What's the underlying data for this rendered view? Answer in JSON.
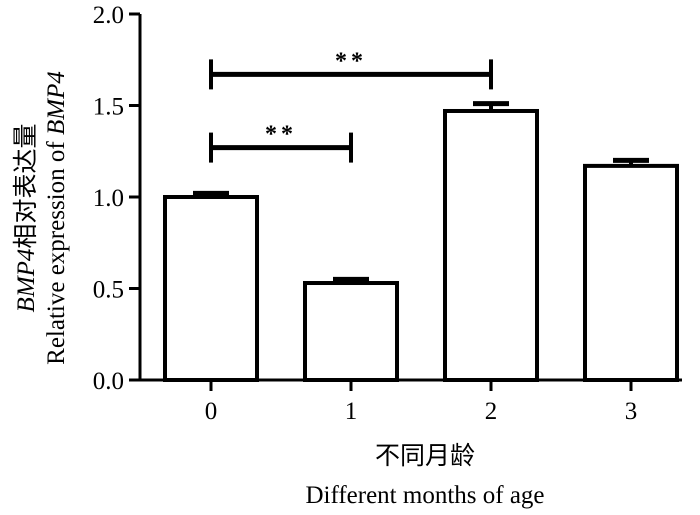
{
  "chart_data": {
    "type": "bar",
    "categories": [
      "0",
      "1",
      "2",
      "3"
    ],
    "values": [
      1.0,
      0.53,
      1.47,
      1.17
    ],
    "errors": [
      0.02,
      0.02,
      0.04,
      0.03
    ],
    "ylim": [
      0,
      2.0
    ],
    "yticks": [
      "0.0",
      "0.5",
      "1.0",
      "1.5",
      "2.0"
    ],
    "xlabel_cn": "不同月龄",
    "xlabel_en": "Different months of age",
    "ylabel_cn_gene": "BMP4",
    "ylabel_cn_rest": "相对表达量",
    "ylabel_en_prefix": "Relative expression of ",
    "ylabel_en_gene": "BMP4",
    "significance": [
      {
        "from": "0",
        "to": "1",
        "label": "**",
        "y": 1.27
      },
      {
        "from": "0",
        "to": "2",
        "label": "**",
        "y": 1.67
      }
    ],
    "bar_fill": "#ffffff",
    "stroke_color": "#000000"
  }
}
